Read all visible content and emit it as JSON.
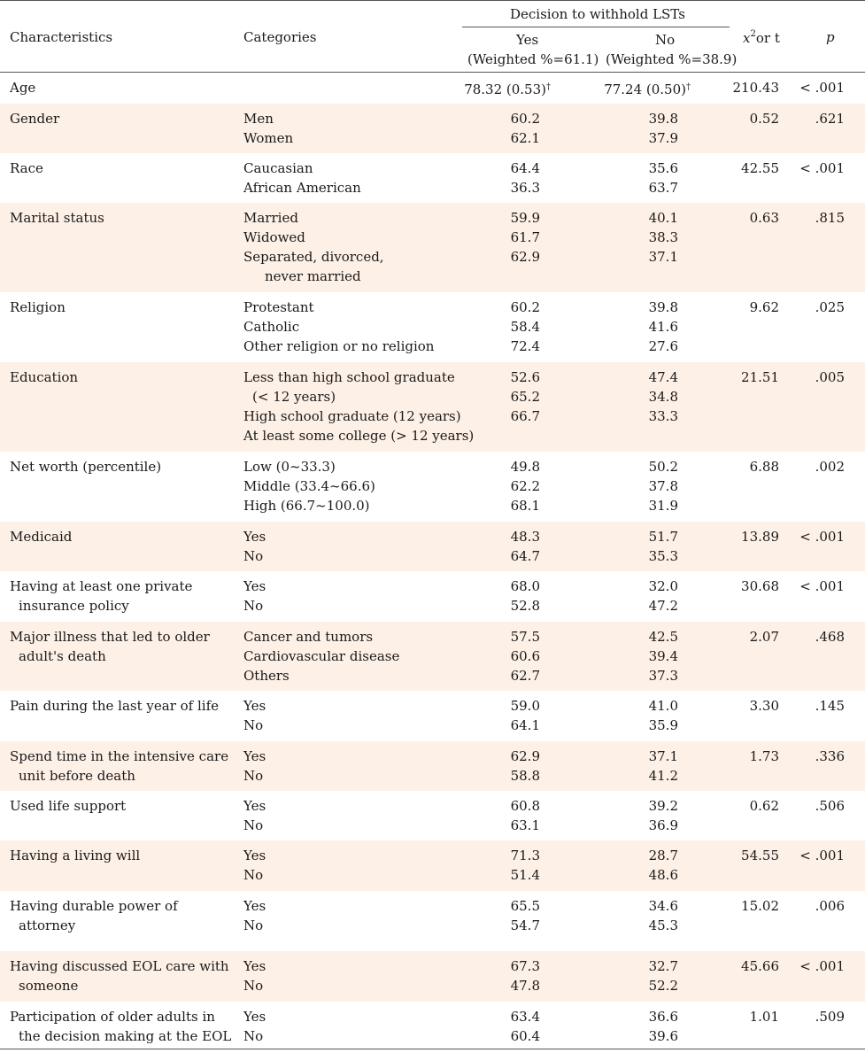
{
  "header": {
    "characteristics": "Characteristics",
    "categories": "Categories",
    "decision": "Decision to withhold LSTs",
    "yes": "Yes",
    "yes_weighted": "(Weighted %=61.1)",
    "no": "No",
    "no_weighted": "(Weighted %=38.9)",
    "chi_x": "x",
    "chi_sup": "2",
    "chi_rest": " or t",
    "p": "p"
  },
  "rows": [
    {
      "characteristic": [
        "Age"
      ],
      "categories": [
        ""
      ],
      "yes": [
        "78.32 (0.53)"
      ],
      "no": [
        "77.24 (0.50)"
      ],
      "dagger": "†",
      "stat": "210.43",
      "p": "< .001",
      "shade": false,
      "h": 35
    },
    {
      "characteristic": [
        "Gender"
      ],
      "categories": [
        "Men",
        "Women"
      ],
      "yes": [
        "60.2",
        "62.1"
      ],
      "no": [
        "39.8",
        "37.9"
      ],
      "stat": "0.52",
      "p": ".621",
      "shade": true,
      "h": 56
    },
    {
      "characteristic": [
        "Race"
      ],
      "categories": [
        "Caucasian",
        "African American"
      ],
      "yes": [
        "64.4",
        "36.3"
      ],
      "no": [
        "35.6",
        "63.7"
      ],
      "stat": "42.55",
      "p": "< .001",
      "shade": false,
      "h": 56
    },
    {
      "characteristic": [
        "Marital status"
      ],
      "categories": [
        "Married",
        "Widowed",
        "Separated, divorced,",
        "  never married"
      ],
      "yes": [
        "59.9",
        "61.7",
        "62.9"
      ],
      "no": [
        "40.1",
        "38.3",
        "37.1"
      ],
      "stat": "0.63",
      "p": ".815",
      "shade": true,
      "h": 101
    },
    {
      "characteristic": [
        "Religion"
      ],
      "categories": [
        "Protestant",
        "Catholic",
        "Other religion or no religion"
      ],
      "yes": [
        "60.2",
        "58.4",
        "72.4"
      ],
      "no": [
        "39.8",
        "41.6",
        "27.6"
      ],
      "stat": "9.62",
      "p": ".025",
      "shade": false,
      "h": 79
    },
    {
      "characteristic": [
        "Education"
      ],
      "categories": [
        "Less than high school graduate",
        " (< 12 years)",
        "High school graduate (12 years)",
        "At least some college (> 12 years)"
      ],
      "yes": [
        "52.6",
        "65.2",
        "66.7"
      ],
      "no": [
        "47.4",
        "34.8",
        "33.3"
      ],
      "stat": "21.51",
      "p": ".005",
      "shade": true,
      "h": 101
    },
    {
      "characteristic": [
        "Net worth (percentile)"
      ],
      "categories": [
        "Low (0~33.3)",
        "Middle (33.4~66.6)",
        "High (66.7~100.0)"
      ],
      "yes": [
        "49.8",
        "62.2",
        "68.1"
      ],
      "no": [
        "50.2",
        "37.8",
        "31.9"
      ],
      "stat": "6.88",
      "p": ".002",
      "shade": false,
      "h": 79
    },
    {
      "characteristic": [
        "Medicaid"
      ],
      "categories": [
        "Yes",
        "No"
      ],
      "yes": [
        "48.3",
        "64.7"
      ],
      "no": [
        "51.7",
        "35.3"
      ],
      "stat": "13.89",
      "p": "< .001",
      "shade": true,
      "h": 56
    },
    {
      "characteristic": [
        "Having at least one private",
        "insurance policy"
      ],
      "categories": [
        "Yes",
        "No"
      ],
      "yes": [
        "68.0",
        "52.8"
      ],
      "no": [
        "32.0",
        "47.2"
      ],
      "stat": "30.68",
      "p": "< .001",
      "shade": false,
      "h": 57
    },
    {
      "characteristic": [
        "Major illness that led to older",
        "adult's death"
      ],
      "categories": [
        "Cancer and tumors",
        "Cardiovascular disease",
        "Others"
      ],
      "yes": [
        "57.5",
        "60.6",
        "62.7"
      ],
      "no": [
        "42.5",
        "39.4",
        "37.3"
      ],
      "stat": "2.07",
      "p": ".468",
      "shade": true,
      "h": 78
    },
    {
      "characteristic": [
        "Pain during the last year of life"
      ],
      "categories": [
        "Yes",
        "No"
      ],
      "yes": [
        "59.0",
        "64.1"
      ],
      "no": [
        "41.0",
        "35.9"
      ],
      "stat": "3.30",
      "p": ".145",
      "shade": false,
      "h": 57
    },
    {
      "characteristic": [
        "Spend time in the intensive care",
        "unit before death"
      ],
      "categories": [
        "Yes",
        "No"
      ],
      "yes": [
        "62.9",
        "58.8"
      ],
      "no": [
        "37.1",
        "41.2"
      ],
      "stat": "1.73",
      "p": ".336",
      "shade": true,
      "h": 56
    },
    {
      "characteristic": [
        "Used life support"
      ],
      "categories": [
        "Yes",
        "No"
      ],
      "yes": [
        "60.8",
        "63.1"
      ],
      "no": [
        "39.2",
        "36.9"
      ],
      "stat": "0.62",
      "p": ".506",
      "shade": false,
      "h": 56
    },
    {
      "characteristic": [
        "Having a living will"
      ],
      "categories": [
        "Yes",
        "No"
      ],
      "yes": [
        "71.3",
        "51.4"
      ],
      "no": [
        "28.7",
        "48.6"
      ],
      "stat": "54.55",
      "p": "< .001",
      "shade": true,
      "h": 57
    },
    {
      "characteristic": [
        "Having durable power of",
        "attorney"
      ],
      "categories": [
        "Yes",
        "No"
      ],
      "yes": [
        "65.5",
        "54.7"
      ],
      "no": [
        "34.6",
        "45.3"
      ],
      "stat": "15.02",
      "p": ".006",
      "shade": false,
      "h": 68
    },
    {
      "characteristic": [
        "Having discussed EOL care with",
        "someone"
      ],
      "categories": [
        "Yes",
        "No"
      ],
      "yes": [
        "67.3",
        "47.8"
      ],
      "no": [
        "32.7",
        "52.2"
      ],
      "stat": "45.66",
      "p": "< .001",
      "shade": true,
      "h": 57
    },
    {
      "characteristic": [
        "Participation of older adults in",
        "the decision making at the EOL"
      ],
      "categories": [
        "Yes",
        "No"
      ],
      "yes": [
        "63.4",
        "60.4"
      ],
      "no": [
        "36.6",
        "39.6"
      ],
      "stat": "1.01",
      "p": ".509",
      "shade": false,
      "h": 58
    }
  ]
}
